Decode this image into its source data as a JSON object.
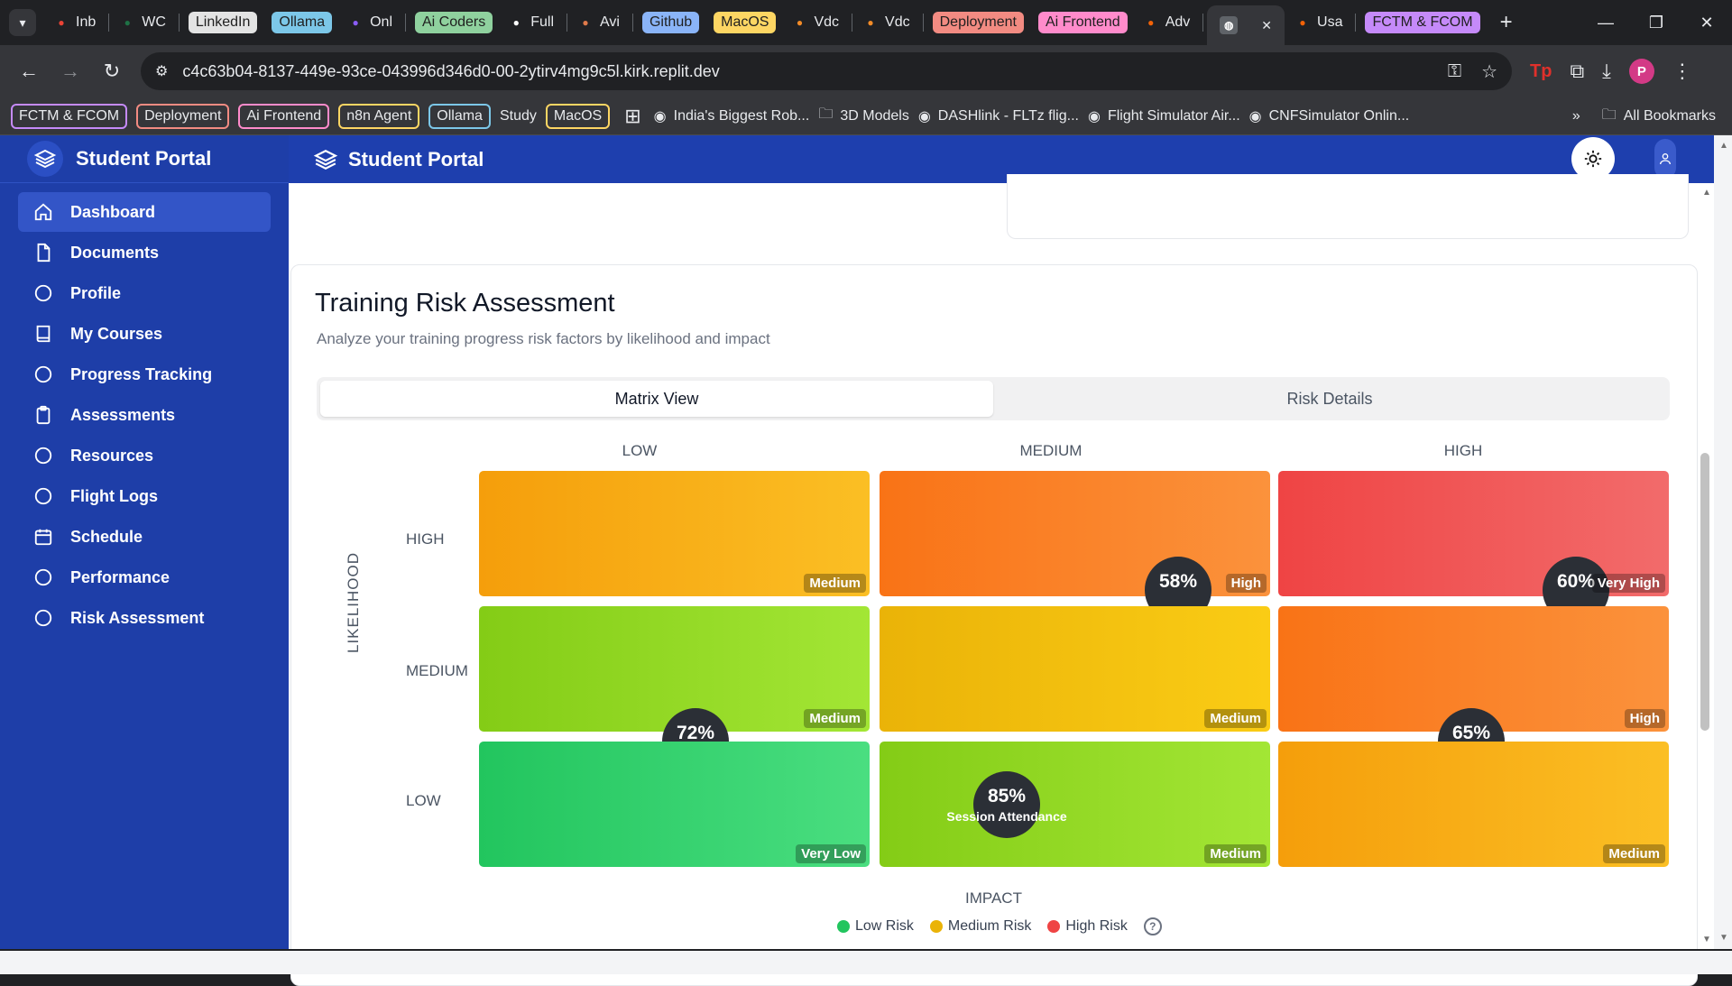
{
  "browser": {
    "tabs": [
      {
        "label": "Inb",
        "icon": "gmail-icon",
        "color": "#ea4335"
      },
      {
        "label": "WC",
        "icon": "excel-icon",
        "color": "#1e7145"
      },
      {
        "label": "LinkedIn",
        "chip": true,
        "chip_color": "#e3e3e3"
      },
      {
        "label": "Ollama",
        "chip": true,
        "chip_color": "#7cc7e8"
      },
      {
        "label": "Onl",
        "icon": "perplexity-icon",
        "color": "#8a5cf6"
      },
      {
        "label": "Ai Coders",
        "chip": true,
        "chip_color": "#8fd19e"
      },
      {
        "label": "Full",
        "icon": "openai-icon",
        "color": "#ffffff"
      },
      {
        "label": "Avi",
        "icon": "claude-icon",
        "color": "#e07a4b"
      },
      {
        "label": "Github",
        "chip": true,
        "chip_color": "#8ab4f8"
      },
      {
        "label": "MacOS",
        "chip": true,
        "chip_color": "#fdd663"
      },
      {
        "label": "Vdc",
        "icon": "app-icon",
        "color": "#f28b27"
      },
      {
        "label": "Vdc",
        "icon": "app-icon",
        "color": "#f28b27"
      },
      {
        "label": "Deployment",
        "chip": true,
        "chip_color": "#f28b82"
      },
      {
        "label": "Ai Frontend",
        "chip": true,
        "chip_color": "#ff8bcb"
      },
      {
        "label": "Adv",
        "icon": "replit-icon",
        "color": "#f26207"
      },
      {
        "label": "",
        "icon": "globe-icon",
        "active": true
      },
      {
        "label": "Usa",
        "icon": "replit-icon",
        "color": "#f26207"
      },
      {
        "label": "FCTM & FCOM",
        "chip": true,
        "chip_color": "#c58af9"
      }
    ],
    "url": "c4c63b04-8137-449e-93ce-043996d346d0-00-2ytirv4mg9c5l.kirk.replit.dev",
    "avatar_letter": "P",
    "bookmarks": [
      {
        "label": "FCTM & FCOM",
        "chip": true,
        "color": "#c58af9"
      },
      {
        "label": "Deployment",
        "chip": true,
        "color": "#f28b82"
      },
      {
        "label": "Ai Frontend",
        "chip": true,
        "color": "#ff8bcb"
      },
      {
        "label": "n8n Agent",
        "chip": true,
        "color": "#fdd663"
      },
      {
        "label": "Ollama",
        "chip": true,
        "color": "#7cc7e8"
      },
      {
        "label": "Study",
        "chip": false
      },
      {
        "label": "MacOS",
        "chip": true,
        "color": "#fdd663"
      },
      {
        "label": "India's Biggest Rob...",
        "icon": "robot-icon"
      },
      {
        "label": "3D Models",
        "icon": "folder-icon"
      },
      {
        "label": "DASHlink - FLTz flig...",
        "icon": "nasa-icon"
      },
      {
        "label": "Flight Simulator Air...",
        "icon": "plane-icon"
      },
      {
        "label": "CNFSimulator Onlin...",
        "icon": "sim-icon"
      }
    ],
    "all_bookmarks": "All Bookmarks"
  },
  "app": {
    "name": "Student Portal",
    "nav": [
      {
        "label": "Dashboard",
        "icon": "home-icon",
        "active": true
      },
      {
        "label": "Documents",
        "icon": "document-icon"
      },
      {
        "label": "Profile",
        "icon": "circle-icon"
      },
      {
        "label": "My Courses",
        "icon": "book-icon"
      },
      {
        "label": "Progress Tracking",
        "icon": "circle-icon"
      },
      {
        "label": "Assessments",
        "icon": "clipboard-icon"
      },
      {
        "label": "Resources",
        "icon": "circle-icon"
      },
      {
        "label": "Flight Logs",
        "icon": "circle-icon"
      },
      {
        "label": "Schedule",
        "icon": "calendar-icon"
      },
      {
        "label": "Performance",
        "icon": "circle-icon"
      },
      {
        "label": "Risk Assessment",
        "icon": "circle-icon"
      }
    ]
  },
  "risk": {
    "title": "Training Risk Assessment",
    "subtitle": "Analyze your training progress risk factors by likelihood and impact",
    "tabs": [
      "Matrix View",
      "Risk Details"
    ],
    "active_tab": 0,
    "columns": [
      "LOW",
      "MEDIUM",
      "HIGH"
    ],
    "rows": [
      "HIGH",
      "MEDIUM",
      "LOW"
    ],
    "y_axis": "LIKELIHOOD",
    "x_axis": "IMPACT",
    "cells": [
      {
        "row": "HIGH",
        "col": "LOW",
        "level": "Medium",
        "color_from": "#f59e0b",
        "color_to": "#fbbf24"
      },
      {
        "row": "HIGH",
        "col": "MEDIUM",
        "level": "High",
        "color_from": "#f97316",
        "color_to": "#fb923c",
        "bubble": {
          "pct": "58%",
          "label": ""
        }
      },
      {
        "row": "HIGH",
        "col": "HIGH",
        "level": "Very High",
        "color_from": "#ef4444",
        "color_to": "#f26b6b",
        "bubble": {
          "pct": "60%",
          "label": ""
        }
      },
      {
        "row": "MEDIUM",
        "col": "LOW",
        "level": "Medium",
        "color_from": "#84cc16",
        "color_to": "#a3e635",
        "bubble": {
          "pct": "72%",
          "label": ""
        }
      },
      {
        "row": "MEDIUM",
        "col": "MEDIUM",
        "level": "Medium",
        "color_from": "#eab308",
        "color_to": "#facc15"
      },
      {
        "row": "MEDIUM",
        "col": "HIGH",
        "level": "High",
        "color_from": "#f97316",
        "color_to": "#fb923c",
        "bubble": {
          "pct": "65%",
          "label": ""
        }
      },
      {
        "row": "LOW",
        "col": "LOW",
        "level": "Very Low",
        "color_from": "#22c55e",
        "color_to": "#4ade80"
      },
      {
        "row": "LOW",
        "col": "MEDIUM",
        "level": "Medium",
        "color_from": "#84cc16",
        "color_to": "#a3e635",
        "bubble": {
          "pct": "85%",
          "label": "Session Attendance"
        }
      },
      {
        "row": "LOW",
        "col": "HIGH",
        "level": "Medium",
        "color_from": "#f59e0b",
        "color_to": "#fbbf24"
      }
    ],
    "legend": [
      {
        "label": "Low Risk",
        "color": "#22c55e"
      },
      {
        "label": "Medium Risk",
        "color": "#eab308"
      },
      {
        "label": "High Risk",
        "color": "#ef4444"
      }
    ]
  }
}
